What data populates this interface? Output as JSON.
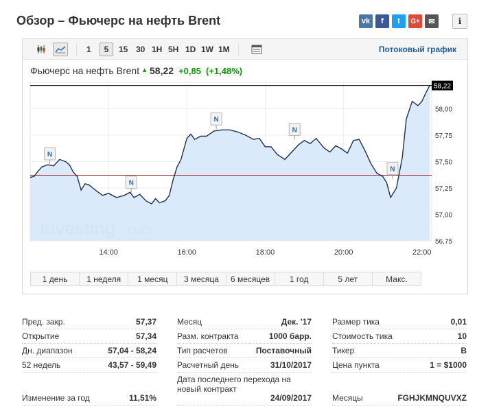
{
  "page": {
    "title": "Обзор – Фьючерс на нефть Brent",
    "share": {
      "vk": "vk",
      "facebook": "f",
      "twitter": "t",
      "google": "G+",
      "mail": "✉"
    },
    "info_label": "i"
  },
  "toolbar": {
    "chart_types": [
      "candles-icon",
      "area-chart-icon"
    ],
    "intervals": [
      "1",
      "5",
      "15",
      "30",
      "1H",
      "5H",
      "1D",
      "1W",
      "1M"
    ],
    "active_interval": "5",
    "stream_link": "Потоковый график"
  },
  "quote": {
    "name": "Фьючерс на нефть Brent",
    "price": "58,22",
    "change": "+0,85",
    "change_pct": "(+1,48%)",
    "direction": "up"
  },
  "chart_data": {
    "type": "area",
    "x_ticks": [
      "14:00",
      "16:00",
      "18:00",
      "20:00",
      "22:00"
    ],
    "x_tick_hours": [
      14,
      16,
      18,
      20,
      22
    ],
    "x_range": [
      12.0,
      22.25
    ],
    "y_ticks": [
      "56,75",
      "57,00",
      "57,25",
      "57,50",
      "57,75",
      "58,00"
    ],
    "y_tick_values": [
      56.75,
      57.0,
      57.25,
      57.5,
      57.75,
      58.0
    ],
    "ylim": [
      56.75,
      58.25
    ],
    "current_value": 58.22,
    "current_label": "58,22",
    "prev_close": 57.37,
    "watermark": {
      "brand": "Investing",
      "suffix": ".com"
    },
    "news_marker_label": "N",
    "news_markers": [
      {
        "t": 12.5,
        "v": 57.49
      },
      {
        "t": 14.58,
        "v": 57.22
      },
      {
        "t": 16.75,
        "v": 57.82
      },
      {
        "t": 18.75,
        "v": 57.72
      },
      {
        "t": 21.25,
        "v": 57.35
      }
    ],
    "series": [
      {
        "t": [
          12.0,
          12.1,
          12.2,
          12.3,
          12.45,
          12.6,
          12.75,
          12.9,
          13.0,
          13.1,
          13.2,
          13.3,
          13.4,
          13.5,
          13.6,
          13.7,
          13.85,
          14.0,
          14.2,
          14.4,
          14.55,
          14.65,
          14.8,
          14.95,
          15.1,
          15.2,
          15.3,
          15.45,
          15.55,
          15.65,
          15.75,
          15.85,
          16.0,
          16.1,
          16.2,
          16.35,
          16.5,
          16.7,
          16.9,
          17.1,
          17.3,
          17.5,
          17.7,
          17.85,
          18.0,
          18.15,
          18.3,
          18.5,
          18.7,
          18.85,
          19.0,
          19.15,
          19.3,
          19.5,
          19.65,
          19.8,
          19.95,
          20.1,
          20.25,
          20.4,
          20.55,
          20.7,
          20.85,
          21.0,
          21.1,
          21.2,
          21.35,
          21.5,
          21.6,
          21.75,
          21.9,
          22.0,
          22.1,
          22.2
        ],
        "v": [
          57.35,
          57.36,
          57.41,
          57.45,
          57.47,
          57.46,
          57.52,
          57.5,
          57.47,
          57.4,
          57.36,
          57.23,
          57.29,
          57.28,
          57.25,
          57.22,
          57.18,
          57.2,
          57.16,
          57.18,
          57.21,
          57.16,
          57.19,
          57.13,
          57.1,
          57.15,
          57.11,
          57.13,
          57.18,
          57.33,
          57.45,
          57.52,
          57.72,
          57.76,
          57.71,
          57.74,
          57.74,
          57.79,
          57.8,
          57.8,
          57.78,
          57.75,
          57.71,
          57.72,
          57.64,
          57.64,
          57.57,
          57.52,
          57.6,
          57.66,
          57.7,
          57.67,
          57.72,
          57.63,
          57.59,
          57.65,
          57.62,
          57.58,
          57.7,
          57.71,
          57.6,
          57.48,
          57.39,
          57.36,
          57.3,
          57.16,
          57.25,
          57.54,
          57.9,
          58.07,
          58.03,
          58.07,
          58.15,
          58.22
        ]
      }
    ]
  },
  "ranges": [
    "1 день",
    "1 неделя",
    "1 месяц",
    "3 месяца",
    "6 месяцев",
    "1 год",
    "5 лет",
    "Макс."
  ],
  "stats": {
    "col1": [
      {
        "label": "Пред. закр.",
        "value": "57,37"
      },
      {
        "label": "Открытие",
        "value": "57,34"
      },
      {
        "label": "Дн. диапазон",
        "value": "57,04 - 58,24"
      },
      {
        "label": "52 недель",
        "value": "43,57 - 59,49"
      },
      {
        "label": "Изменение за год",
        "value": "11,51%"
      }
    ],
    "col2": [
      {
        "label": "Месяц",
        "value": "Дек. '17"
      },
      {
        "label": "Разм. контракта",
        "value": "1000 барр."
      },
      {
        "label": "Тип расчетов",
        "value": "Поставочный"
      },
      {
        "label": "Расчетный день",
        "value": "31/10/2017"
      },
      {
        "label": "Дата последнего перехода на новый контракт",
        "value": "24/09/2017"
      }
    ],
    "col3": [
      {
        "label": "Размер тика",
        "value": "0,01"
      },
      {
        "label": "Стоимость тика",
        "value": "10"
      },
      {
        "label": "Тикер",
        "value": "B"
      },
      {
        "label": "Цена пункта",
        "value": "1 = $1000"
      },
      {
        "label": "Месяцы",
        "value": "FGHJKMNQUVXZ"
      }
    ]
  }
}
